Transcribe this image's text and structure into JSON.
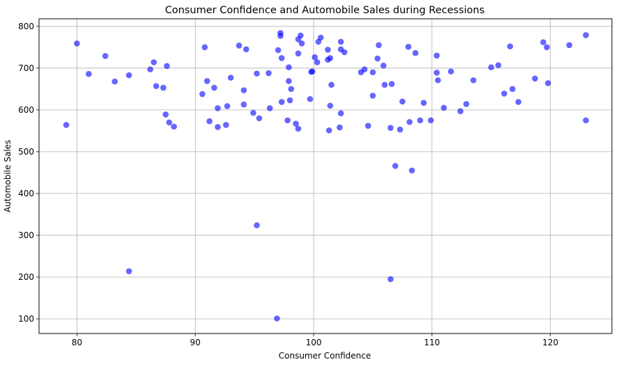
{
  "chart_data": {
    "type": "scatter",
    "title": "Consumer Confidence and Automobile Sales during Recessions",
    "xlabel": "Consumer Confidence",
    "ylabel": "Automobile Sales",
    "xlim": [
      76.8,
      125.2
    ],
    "ylim": [
      65,
      818
    ],
    "xticks": [
      80,
      90,
      100,
      110,
      120
    ],
    "yticks": [
      100,
      200,
      300,
      400,
      500,
      600,
      700,
      800
    ],
    "grid": true,
    "marker_color": "#0000ff",
    "marker_alpha": 0.6,
    "points": [
      [
        79.1,
        564
      ],
      [
        80.0,
        759
      ],
      [
        81.0,
        686
      ],
      [
        82.4,
        729
      ],
      [
        83.2,
        668
      ],
      [
        84.4,
        683
      ],
      [
        84.4,
        214
      ],
      [
        86.2,
        697
      ],
      [
        86.5,
        714
      ],
      [
        86.7,
        657
      ],
      [
        87.3,
        653
      ],
      [
        87.5,
        589
      ],
      [
        87.6,
        705
      ],
      [
        87.8,
        570
      ],
      [
        88.2,
        560
      ],
      [
        90.6,
        638
      ],
      [
        90.8,
        750
      ],
      [
        91.0,
        669
      ],
      [
        91.2,
        573
      ],
      [
        91.6,
        653
      ],
      [
        91.9,
        604
      ],
      [
        91.9,
        559
      ],
      [
        92.6,
        564
      ],
      [
        92.7,
        609
      ],
      [
        93.0,
        677
      ],
      [
        93.7,
        754
      ],
      [
        94.1,
        647
      ],
      [
        94.1,
        613
      ],
      [
        94.3,
        745
      ],
      [
        94.9,
        593
      ],
      [
        95.2,
        687
      ],
      [
        95.2,
        324
      ],
      [
        95.4,
        580
      ],
      [
        96.2,
        688
      ],
      [
        96.3,
        604
      ],
      [
        96.9,
        101
      ],
      [
        97.0,
        743
      ],
      [
        97.2,
        784
      ],
      [
        97.2,
        777
      ],
      [
        97.3,
        724
      ],
      [
        97.3,
        619
      ],
      [
        97.8,
        575
      ],
      [
        97.9,
        702
      ],
      [
        97.9,
        669
      ],
      [
        98.0,
        623
      ],
      [
        98.1,
        650
      ],
      [
        98.5,
        567
      ],
      [
        98.7,
        769
      ],
      [
        98.7,
        735
      ],
      [
        98.7,
        555
      ],
      [
        98.9,
        778
      ],
      [
        99.0,
        759
      ],
      [
        99.7,
        626
      ],
      [
        99.8,
        691
      ],
      [
        99.9,
        692
      ],
      [
        100.1,
        726
      ],
      [
        100.3,
        714
      ],
      [
        100.4,
        763
      ],
      [
        100.6,
        773
      ],
      [
        101.2,
        744
      ],
      [
        101.2,
        720
      ],
      [
        101.3,
        551
      ],
      [
        101.4,
        610
      ],
      [
        101.4,
        724
      ],
      [
        101.5,
        660
      ],
      [
        102.2,
        558
      ],
      [
        102.3,
        592
      ],
      [
        102.3,
        763
      ],
      [
        102.3,
        745
      ],
      [
        102.6,
        738
      ],
      [
        104.0,
        690
      ],
      [
        104.3,
        697
      ],
      [
        104.6,
        562
      ],
      [
        105.0,
        690
      ],
      [
        105.0,
        634
      ],
      [
        105.4,
        723
      ],
      [
        105.5,
        755
      ],
      [
        105.9,
        706
      ],
      [
        106.0,
        660
      ],
      [
        106.5,
        557
      ],
      [
        106.5,
        195
      ],
      [
        106.6,
        662
      ],
      [
        106.9,
        466
      ],
      [
        107.3,
        553
      ],
      [
        107.5,
        620
      ],
      [
        108.0,
        751
      ],
      [
        108.1,
        571
      ],
      [
        108.3,
        455
      ],
      [
        108.6,
        736
      ],
      [
        109.0,
        575
      ],
      [
        109.3,
        617
      ],
      [
        109.9,
        575
      ],
      [
        110.4,
        689
      ],
      [
        110.4,
        730
      ],
      [
        110.5,
        671
      ],
      [
        111.0,
        605
      ],
      [
        111.6,
        692
      ],
      [
        112.4,
        597
      ],
      [
        112.9,
        614
      ],
      [
        113.5,
        671
      ],
      [
        115.0,
        702
      ],
      [
        115.6,
        707
      ],
      [
        116.1,
        639
      ],
      [
        116.6,
        752
      ],
      [
        116.8,
        650
      ],
      [
        117.3,
        619
      ],
      [
        118.7,
        675
      ],
      [
        119.4,
        762
      ],
      [
        119.7,
        750
      ],
      [
        119.8,
        664
      ],
      [
        121.6,
        755
      ],
      [
        123.0,
        779
      ],
      [
        123.0,
        575
      ]
    ]
  }
}
